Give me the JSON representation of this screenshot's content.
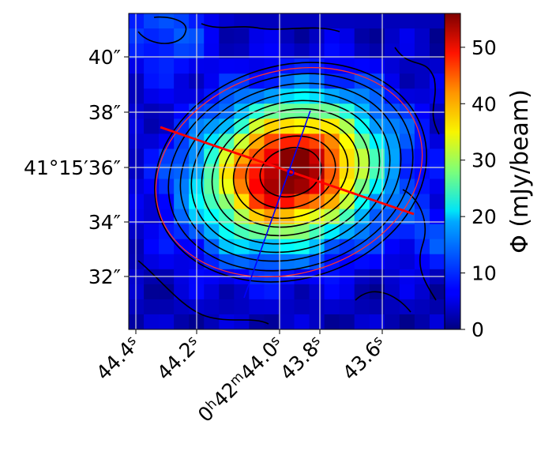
{
  "chart_data": {
    "type": "heatmap",
    "title": "",
    "xlabel": "",
    "ylabel": "",
    "colormap": "jet",
    "x_ticks": [
      "44.4s",
      "44.2s",
      "0h42m44.0s",
      "43.8s",
      "43.6s"
    ],
    "y_ticks": [
      "40″",
      "38″",
      "41°15′36″",
      "34″",
      "32″"
    ],
    "colorbar": {
      "label": "Φ (mJy/beam)",
      "range": [
        0,
        56
      ],
      "ticks": [
        0,
        10,
        20,
        30,
        40,
        50
      ]
    },
    "grid": true,
    "source": {
      "peak_mJy_per_beam": 55,
      "center_ra_s": 43.94,
      "center_dec_offset_arcsec": 0
    },
    "major_axis_color": "#ff0000",
    "minor_axis_color": "#0000ff",
    "ellipse_color": "#ff3030",
    "contour_color": "#000000"
  }
}
